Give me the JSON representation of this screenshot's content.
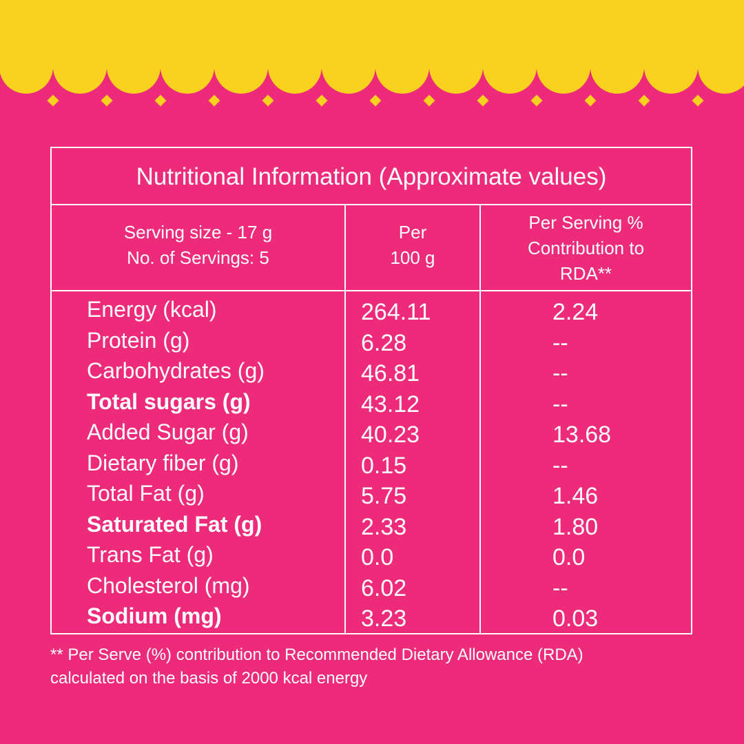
{
  "colors": {
    "background": "#EE2A7B",
    "border_top": "#F9D11F",
    "text": "#FFFFFF"
  },
  "table": {
    "title": "Nutritional Information (Approximate values)",
    "header": {
      "serving_line1": "Serving size - 17 g",
      "serving_line2": "No. of Servings: 5",
      "per100_line1": "Per",
      "per100_line2": "100 g",
      "rda_line1": "Per Serving %",
      "rda_line2": "Contribution to",
      "rda_line3": "RDA**"
    },
    "rows": [
      {
        "label": "Energy (kcal)",
        "per100": "264.11",
        "rda": "2.24",
        "bold": false
      },
      {
        "label": "Protein (g)",
        "per100": "6.28",
        "rda": "--",
        "bold": false
      },
      {
        "label": "Carbohydrates (g)",
        "per100": "46.81",
        "rda": "--",
        "bold": false
      },
      {
        "label": "Total sugars (g)",
        "per100": "43.12",
        "rda": "--",
        "bold": true
      },
      {
        "label": "Added Sugar (g)",
        "per100": "40.23",
        "rda": "13.68",
        "bold": false
      },
      {
        "label": "Dietary fiber (g)",
        "per100": "0.15",
        "rda": "--",
        "bold": false
      },
      {
        "label": "Total Fat (g)",
        "per100": "5.75",
        "rda": "1.46",
        "bold": false
      },
      {
        "label": "Saturated Fat (g)",
        "per100": "2.33",
        "rda": "1.80",
        "bold": true
      },
      {
        "label": "Trans Fat (g)",
        "per100": "0.0",
        "rda": "0.0",
        "bold": false
      },
      {
        "label": "Cholesterol (mg)",
        "per100": "6.02",
        "rda": "--",
        "bold": false
      },
      {
        "label": "Sodium (mg)",
        "per100": "3.23",
        "rda": "0.03",
        "bold": true
      }
    ]
  },
  "footnote": {
    "line1": "** Per Serve (%) contribution to Recommended Dietary Allowance (RDA)",
    "line2": "calculated on the basis of 2000 kcal energy"
  }
}
